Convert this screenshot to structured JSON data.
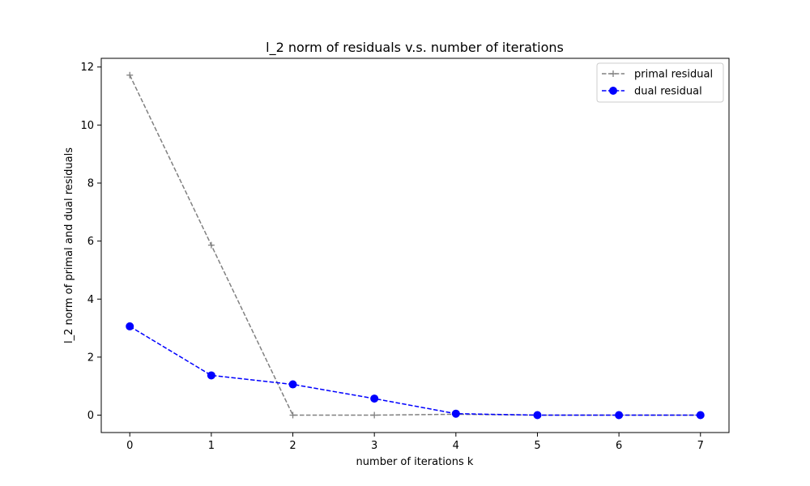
{
  "chart_data": {
    "type": "line",
    "title": "l_2 norm of residuals v.s. number of iterations",
    "xlabel": "number of iterations k",
    "ylabel": "l_2 norm of primal and dual residuals",
    "x": [
      0,
      1,
      2,
      3,
      4,
      5,
      6,
      7
    ],
    "xlim": [
      -0.35,
      7.35
    ],
    "ylim": [
      -0.6,
      12.3
    ],
    "xticks": [
      "0",
      "1",
      "2",
      "3",
      "4",
      "5",
      "6",
      "7"
    ],
    "yticks": [
      "0",
      "2",
      "4",
      "6",
      "8",
      "10",
      "12"
    ],
    "grid": false,
    "legend_position": "top-right",
    "series": [
      {
        "name": "primal residual",
        "values": [
          11.72,
          5.86,
          0.0,
          0.0,
          0.03,
          0.0,
          0.0,
          0.0
        ],
        "color": "#808080",
        "linestyle": "dashed",
        "marker": "plus"
      },
      {
        "name": "dual residual",
        "values": [
          3.06,
          1.37,
          1.06,
          0.57,
          0.05,
          0.0,
          0.0,
          0.0
        ],
        "color": "#0000ff",
        "linestyle": "dashed",
        "marker": "circle"
      }
    ]
  }
}
